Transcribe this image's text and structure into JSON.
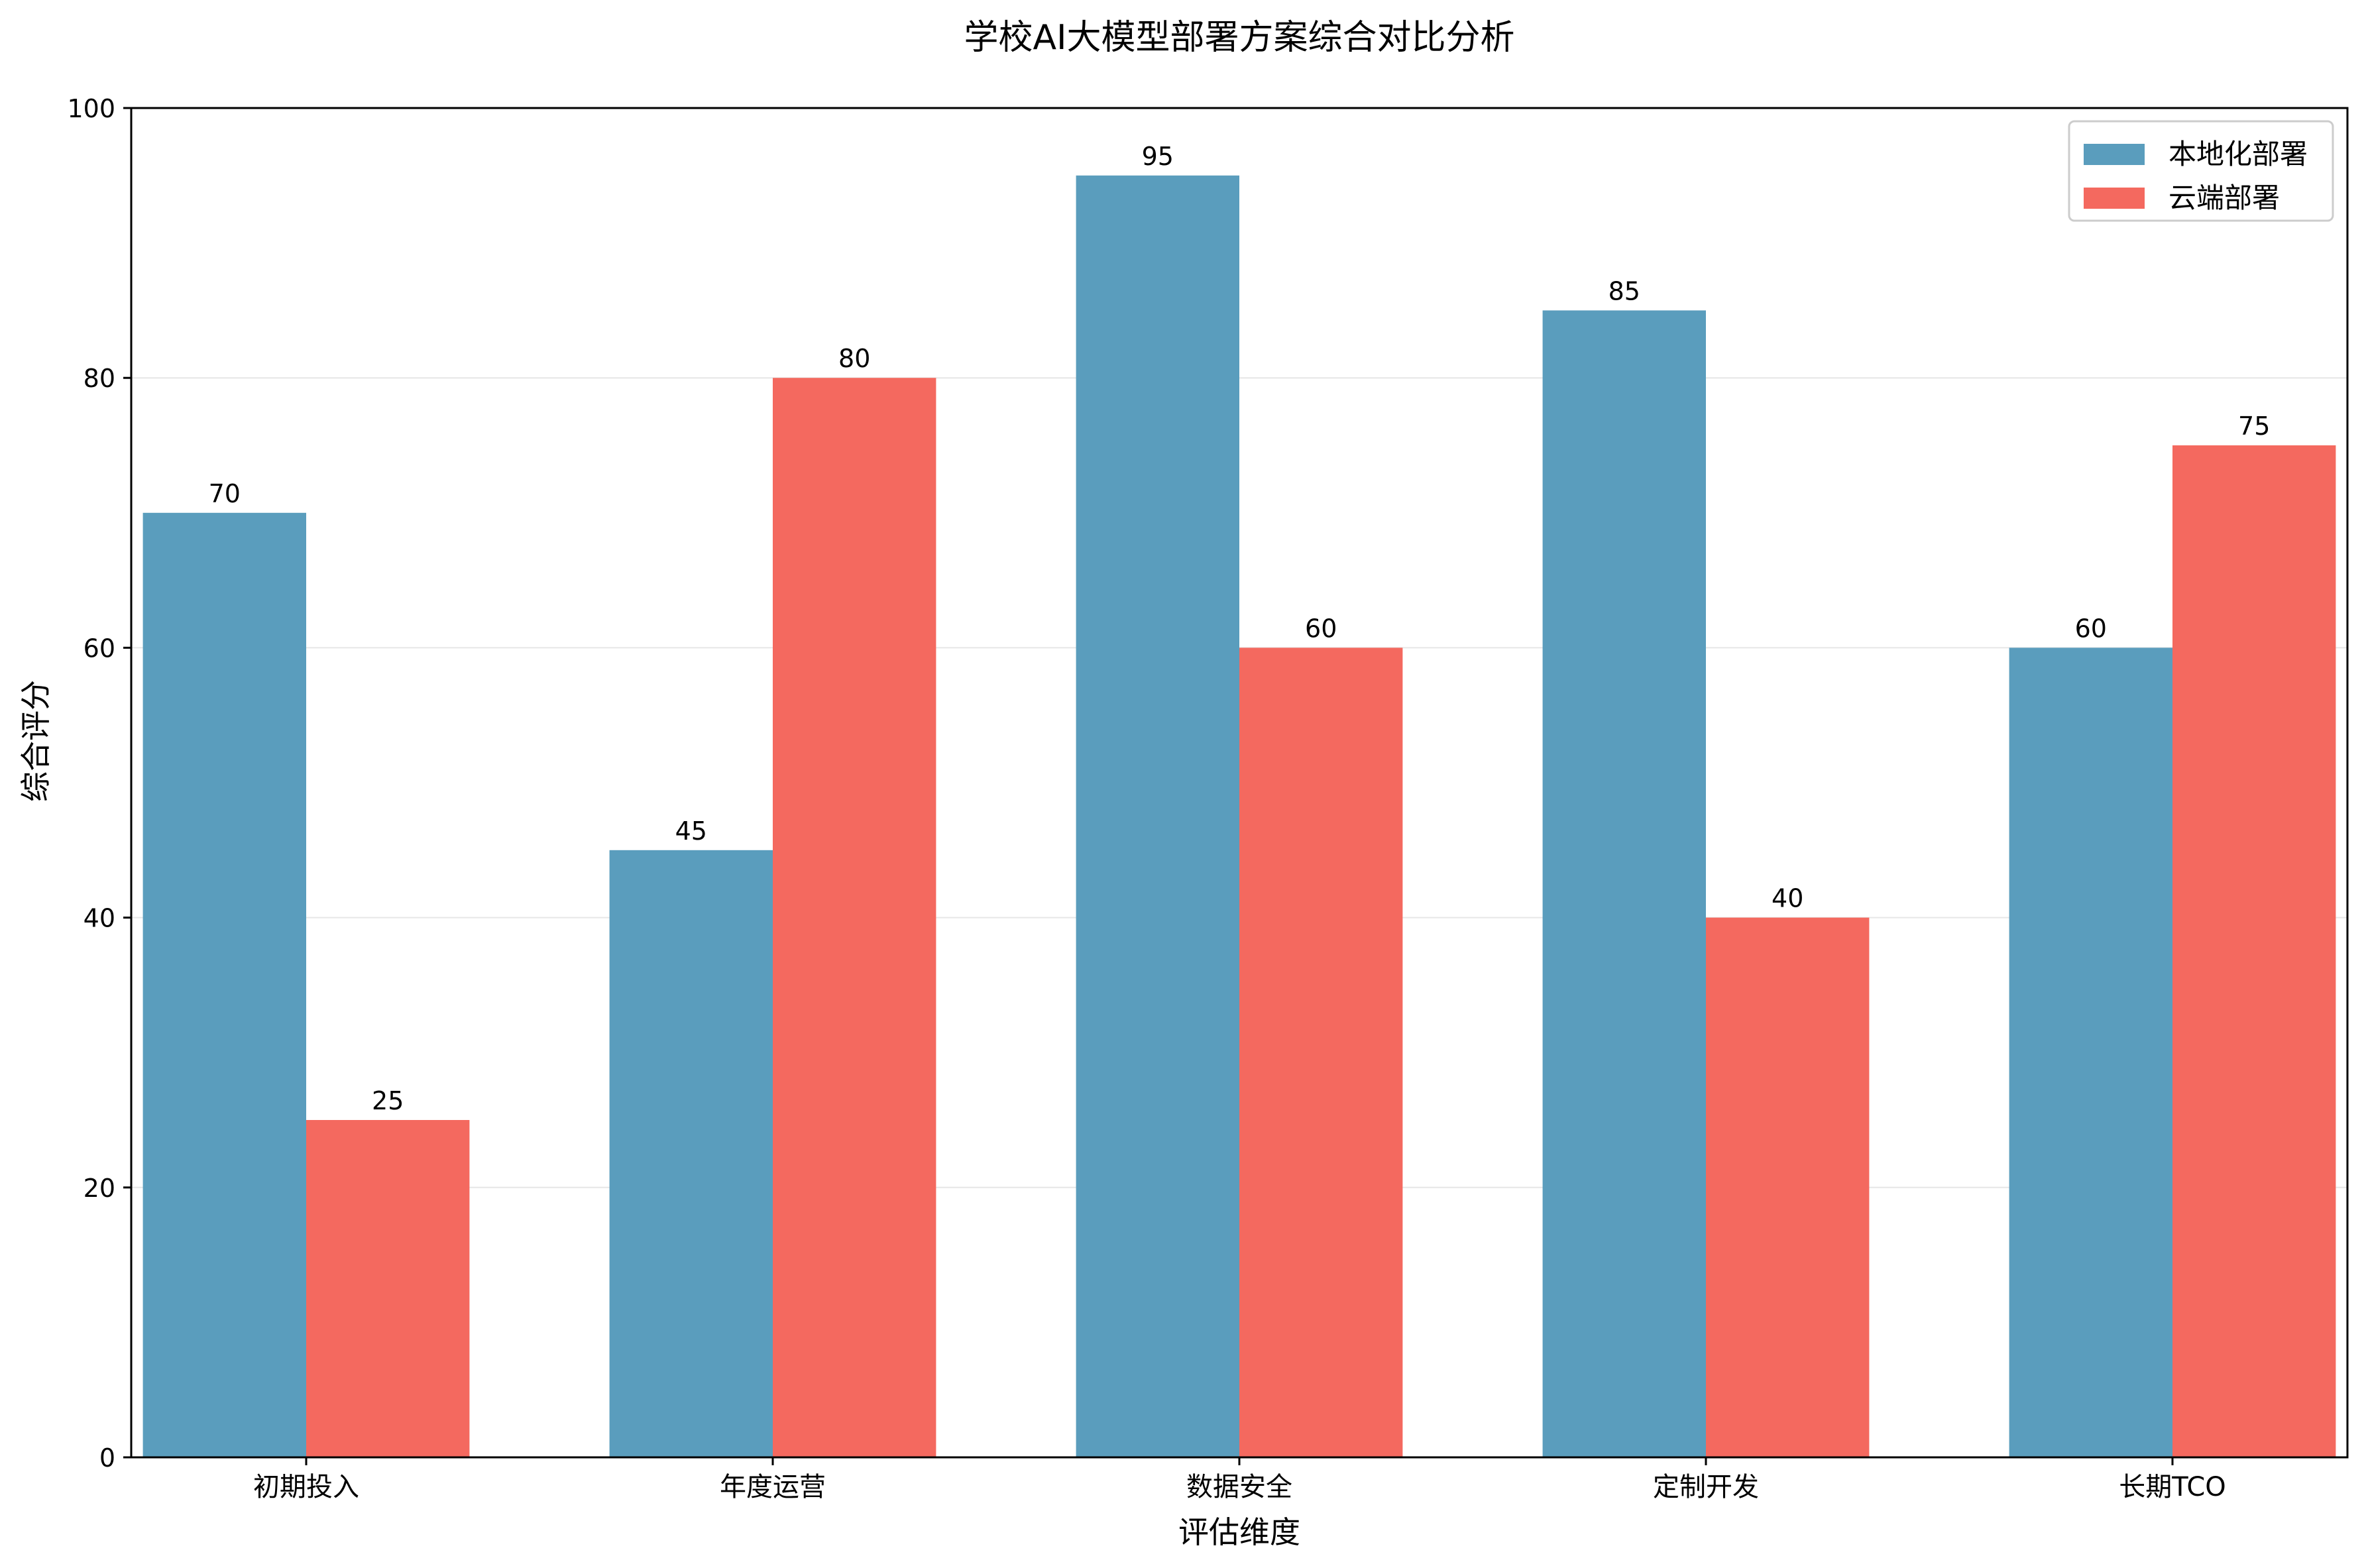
{
  "chart_data": {
    "type": "bar",
    "title": "学校AI大模型部署方案综合对比分析",
    "xlabel": "评估维度",
    "ylabel": "综合评分",
    "categories": [
      "初期投入",
      "年度运营",
      "数据安全",
      "定制开发",
      "长期TCO"
    ],
    "series": [
      {
        "name": "本地化部署",
        "values": [
          70,
          45,
          95,
          85,
          60
        ],
        "color": "#5A9DBD"
      },
      {
        "name": "云端部署",
        "values": [
          25,
          80,
          60,
          40,
          75
        ],
        "color": "#F4695F"
      }
    ],
    "ylim": [
      0,
      100
    ],
    "yticks": [
      0,
      20,
      40,
      60,
      80,
      100
    ],
    "grid": "y",
    "legend": "top-right",
    "data_labels": true
  }
}
